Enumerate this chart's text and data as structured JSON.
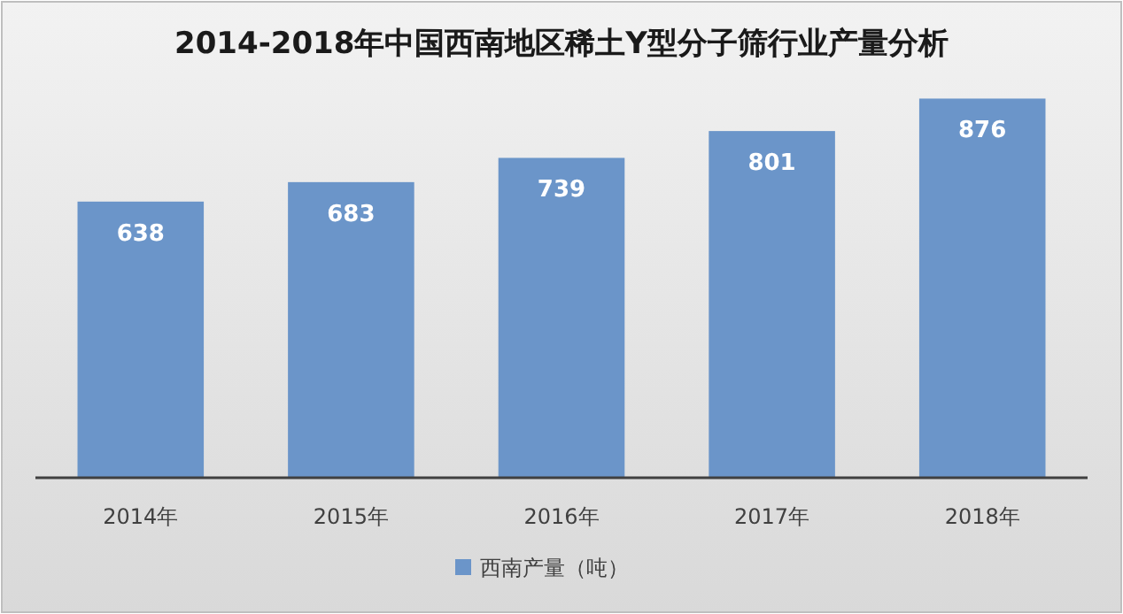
{
  "chart_data": {
    "type": "bar",
    "title": "2014-2018年中国西南地区稀土Y型分子筛行业产量分析",
    "categories": [
      "2014年",
      "2015年",
      "2016年",
      "2017年",
      "2018年"
    ],
    "series": [
      {
        "name": "西南产量（吨）",
        "color": "#6b95c9",
        "values": [
          638,
          683,
          739,
          801,
          876
        ]
      }
    ],
    "data_labels": true,
    "legend": "bottom"
  }
}
